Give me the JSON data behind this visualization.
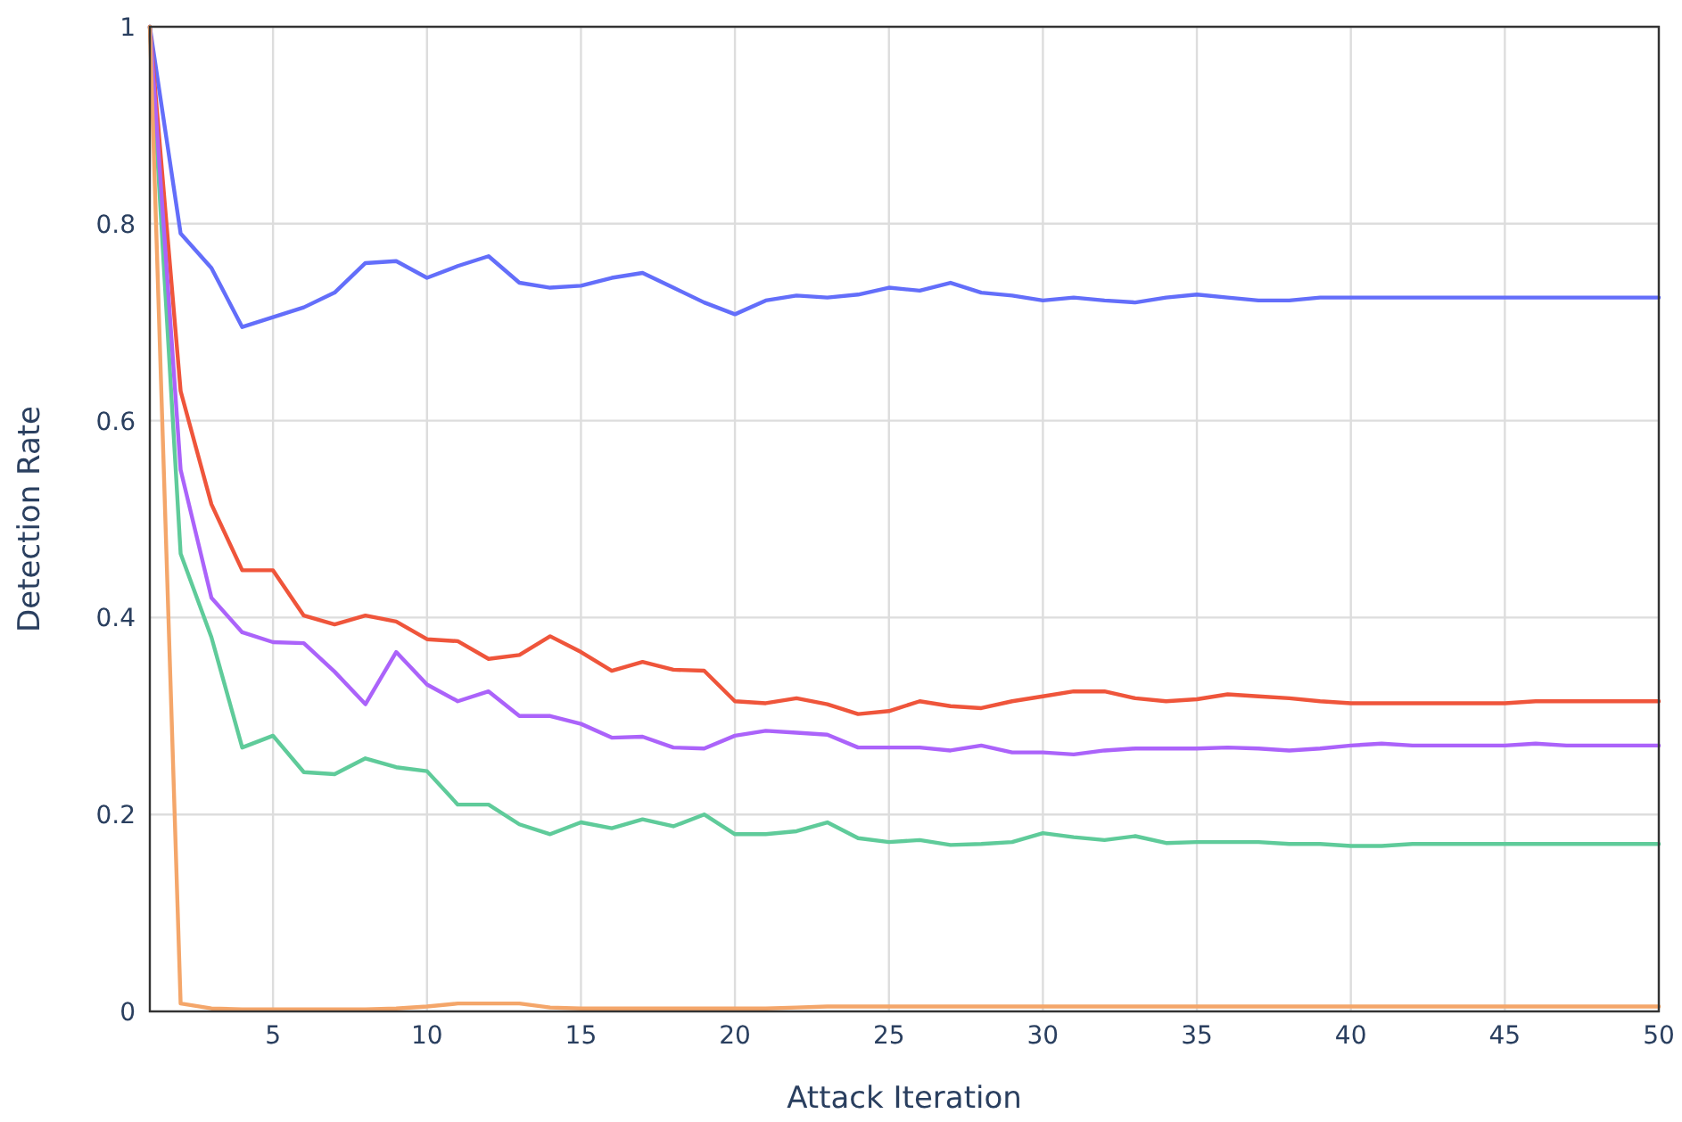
{
  "chart_data": {
    "type": "line",
    "xlabel": "Attack Iteration",
    "ylabel": "Detection Rate",
    "x": [
      1,
      2,
      3,
      4,
      5,
      6,
      7,
      8,
      9,
      10,
      11,
      12,
      13,
      14,
      15,
      16,
      17,
      18,
      19,
      20,
      21,
      22,
      23,
      24,
      25,
      26,
      27,
      28,
      29,
      30,
      31,
      32,
      33,
      34,
      35,
      36,
      37,
      38,
      39,
      40,
      41,
      42,
      43,
      44,
      45,
      46,
      47,
      48,
      49,
      50
    ],
    "series": [
      {
        "color": "#636efa",
        "values": [
          1,
          0.79,
          0.755,
          0.695,
          0.705,
          0.715,
          0.73,
          0.76,
          0.762,
          0.745,
          0.757,
          0.767,
          0.74,
          0.735,
          0.737,
          0.745,
          0.75,
          0.735,
          0.72,
          0.708,
          0.722,
          0.727,
          0.725,
          0.728,
          0.735,
          0.732,
          0.74,
          0.73,
          0.727,
          0.722,
          0.725,
          0.722,
          0.72,
          0.725,
          0.728,
          0.725,
          0.722,
          0.722,
          0.725,
          0.725,
          0.725,
          0.725,
          0.725,
          0.725,
          0.725,
          0.725,
          0.725,
          0.725,
          0.725,
          0.725
        ]
      },
      {
        "color": "#ef553b",
        "values": [
          1,
          0.63,
          0.515,
          0.448,
          0.448,
          0.402,
          0.393,
          0.402,
          0.396,
          0.378,
          0.376,
          0.358,
          0.362,
          0.381,
          0.365,
          0.346,
          0.355,
          0.347,
          0.346,
          0.315,
          0.313,
          0.318,
          0.312,
          0.302,
          0.305,
          0.315,
          0.31,
          0.308,
          0.315,
          0.32,
          0.325,
          0.325,
          0.318,
          0.315,
          0.317,
          0.322,
          0.32,
          0.318,
          0.315,
          0.313,
          0.313,
          0.313,
          0.313,
          0.313,
          0.313,
          0.315,
          0.315,
          0.315,
          0.315,
          0.315
        ]
      },
      {
        "color": "#5fcb9a",
        "values": [
          1,
          0.465,
          0.38,
          0.268,
          0.28,
          0.243,
          0.241,
          0.257,
          0.248,
          0.244,
          0.21,
          0.21,
          0.19,
          0.18,
          0.192,
          0.186,
          0.195,
          0.188,
          0.2,
          0.18,
          0.18,
          0.183,
          0.192,
          0.176,
          0.172,
          0.174,
          0.169,
          0.17,
          0.172,
          0.181,
          0.177,
          0.174,
          0.178,
          0.171,
          0.172,
          0.172,
          0.172,
          0.17,
          0.17,
          0.168,
          0.168,
          0.17,
          0.17,
          0.17,
          0.17,
          0.17,
          0.17,
          0.17,
          0.17,
          0.17
        ]
      },
      {
        "color": "#ab63fa",
        "values": [
          1,
          0.55,
          0.42,
          0.385,
          0.375,
          0.374,
          0.345,
          0.312,
          0.365,
          0.332,
          0.315,
          0.325,
          0.3,
          0.3,
          0.292,
          0.278,
          0.279,
          0.268,
          0.267,
          0.28,
          0.285,
          0.283,
          0.281,
          0.268,
          0.268,
          0.268,
          0.265,
          0.27,
          0.263,
          0.263,
          0.261,
          0.265,
          0.267,
          0.267,
          0.267,
          0.268,
          0.267,
          0.265,
          0.267,
          0.27,
          0.272,
          0.27,
          0.27,
          0.27,
          0.27,
          0.272,
          0.27,
          0.27,
          0.27,
          0.27
        ]
      },
      {
        "color": "#f4a66a",
        "values": [
          1,
          0.008,
          0.003,
          0.002,
          0.002,
          0.002,
          0.002,
          0.002,
          0.003,
          0.005,
          0.008,
          0.008,
          0.008,
          0.004,
          0.003,
          0.003,
          0.003,
          0.003,
          0.003,
          0.003,
          0.003,
          0.004,
          0.005,
          0.005,
          0.005,
          0.005,
          0.005,
          0.005,
          0.005,
          0.005,
          0.005,
          0.005,
          0.005,
          0.005,
          0.005,
          0.005,
          0.005,
          0.005,
          0.005,
          0.005,
          0.005,
          0.005,
          0.005,
          0.005,
          0.005,
          0.005,
          0.005,
          0.005,
          0.005,
          0.005
        ]
      }
    ],
    "xlim": [
      1,
      50
    ],
    "xticks": [
      5,
      10,
      15,
      20,
      25,
      30,
      35,
      40,
      45,
      50
    ],
    "ylim": [
      0,
      1
    ],
    "yticks": [
      0,
      0.2,
      0.4,
      0.6,
      0.8,
      1
    ],
    "grid": true,
    "line_style": "solid",
    "marker": "none"
  }
}
